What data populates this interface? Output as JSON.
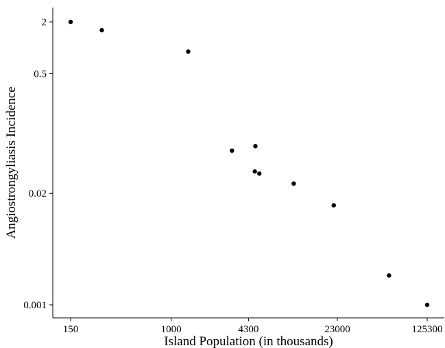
{
  "chart_data": {
    "type": "scatter",
    "title": "",
    "xlabel": "Island Population (in thousands)",
    "ylabel": "Angiostrongyliasis Incidence",
    "x_scale": "log",
    "y_scale": "log",
    "xlim": [
      130,
      150000
    ],
    "ylim": [
      0.0008,
      3.2
    ],
    "x_ticks": [
      150,
      1000,
      4300,
      23000,
      125300
    ],
    "x_tick_labels": [
      "150",
      "1000",
      "4300",
      "23000",
      "125300"
    ],
    "y_ticks": [
      0.001,
      0.02,
      0.5,
      2
    ],
    "y_tick_labels": [
      "0.001",
      "0.02",
      "0.5",
      "2"
    ],
    "grid": false,
    "legend": "none",
    "point_color": "#000000",
    "points": [
      {
        "x": 150,
        "y": 2.0
      },
      {
        "x": 270,
        "y": 1.6
      },
      {
        "x": 1380,
        "y": 0.9
      },
      {
        "x": 3150,
        "y": 0.063
      },
      {
        "x": 4900,
        "y": 0.071
      },
      {
        "x": 4850,
        "y": 0.036
      },
      {
        "x": 5280,
        "y": 0.034
      },
      {
        "x": 10100,
        "y": 0.026
      },
      {
        "x": 21500,
        "y": 0.0145
      },
      {
        "x": 61000,
        "y": 0.0022
      },
      {
        "x": 125300,
        "y": 0.001
      }
    ]
  }
}
